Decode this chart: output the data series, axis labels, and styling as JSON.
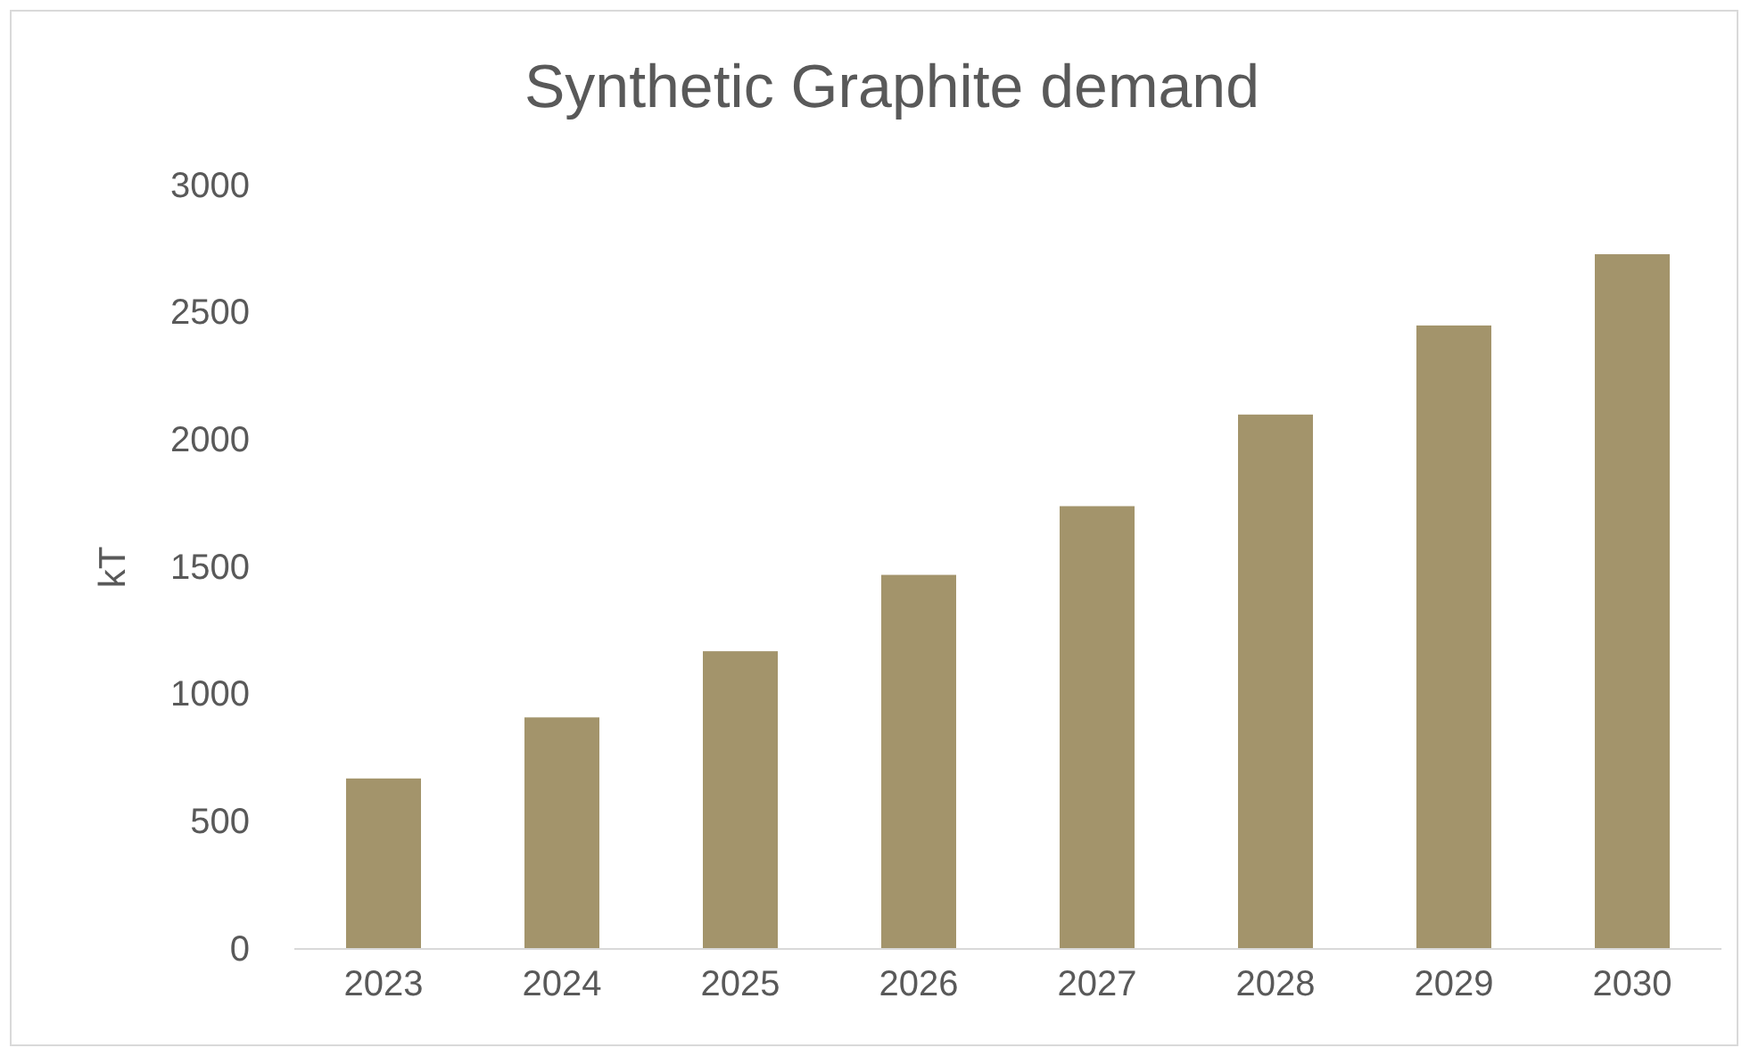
{
  "chart_data": {
    "type": "bar",
    "title": "Synthetic Graphite demand",
    "ylabel": "kT",
    "categories": [
      "2023",
      "2024",
      "2025",
      "2026",
      "2027",
      "2028",
      "2029",
      "2030"
    ],
    "values": [
      670,
      910,
      1170,
      1470,
      1740,
      2100,
      2450,
      2730
    ],
    "color": "#a3946b",
    "ylim": [
      0,
      3000
    ],
    "yticks": [
      0,
      500,
      1000,
      1500,
      2000,
      2500,
      3000
    ],
    "grid": false
  }
}
